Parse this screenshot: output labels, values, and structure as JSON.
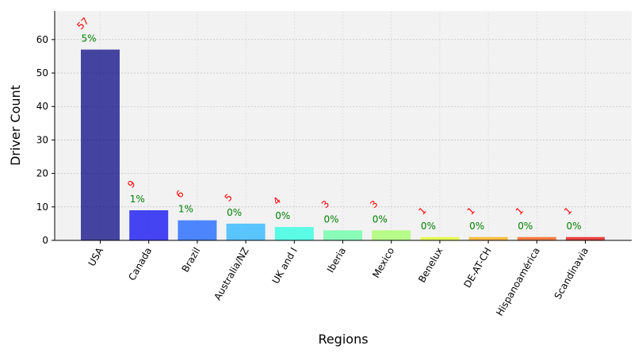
{
  "chart_data": {
    "type": "bar",
    "title": "",
    "xlabel": "Regions",
    "ylabel": "Driver Count",
    "ylim": [
      0,
      68.5
    ],
    "yticks": [
      0,
      10,
      20,
      30,
      40,
      50,
      60
    ],
    "grid": true,
    "categories": [
      "USA",
      "Canada",
      "Brazil",
      "Australia/NZ",
      "UK and I",
      "Iberia",
      "Mexico",
      "Benelux",
      "DE-AT-CH",
      "Hispanoamérica",
      "Scandinavia"
    ],
    "values": [
      57,
      9,
      6,
      5,
      4,
      3,
      3,
      1,
      1,
      1,
      1
    ],
    "value_labels": [
      "57",
      "9",
      "6",
      "5",
      "4",
      "3",
      "3",
      "1",
      "1",
      "1",
      "1"
    ],
    "percent_labels": [
      "5%",
      "1%",
      "1%",
      "0%",
      "0%",
      "0%",
      "0%",
      "0%",
      "0%",
      "0%",
      "0%"
    ],
    "bar_colors": [
      "#000080",
      "#0000f1",
      "#0c5cff",
      "#1fb1ff",
      "#1fffe1",
      "#5fffa0",
      "#a0ff5f",
      "#e1ff1f",
      "#ffa800",
      "#ff5000",
      "#e10000"
    ],
    "value_label_color": "#ff0000",
    "percent_label_color": "#008000",
    "plot_background": "#f2f2f2"
  }
}
